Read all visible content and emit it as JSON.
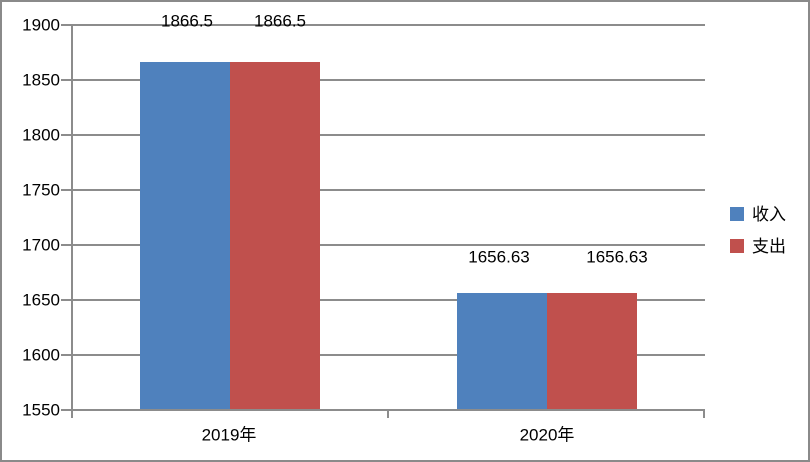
{
  "chart_data": {
    "type": "bar",
    "title": "",
    "xlabel": "",
    "ylabel": "",
    "categories": [
      "2019年",
      "2020年"
    ],
    "series": [
      {
        "name": "收入",
        "color": "#4F81BD",
        "values": [
          1866.5,
          1656.63
        ],
        "data_labels": [
          "1866.5",
          "1656.63"
        ]
      },
      {
        "name": "支出",
        "color": "#C0504D",
        "values": [
          1866.5,
          1656.63
        ],
        "data_labels": [
          "1866.5",
          "1656.63"
        ]
      }
    ],
    "y_ticks": [
      1550,
      1600,
      1650,
      1700,
      1750,
      1800,
      1850,
      1900
    ],
    "ylim": [
      1550,
      1900
    ],
    "grid": "horizontal",
    "legend_position": "right"
  },
  "colors": {
    "background": "#FFFFFF",
    "border": "#8A8A8A",
    "gridline": "#8C8C8C",
    "axis": "#8C8C8C",
    "text": "#000000",
    "series_income": "#4F81BD",
    "series_expense": "#C0504D"
  }
}
